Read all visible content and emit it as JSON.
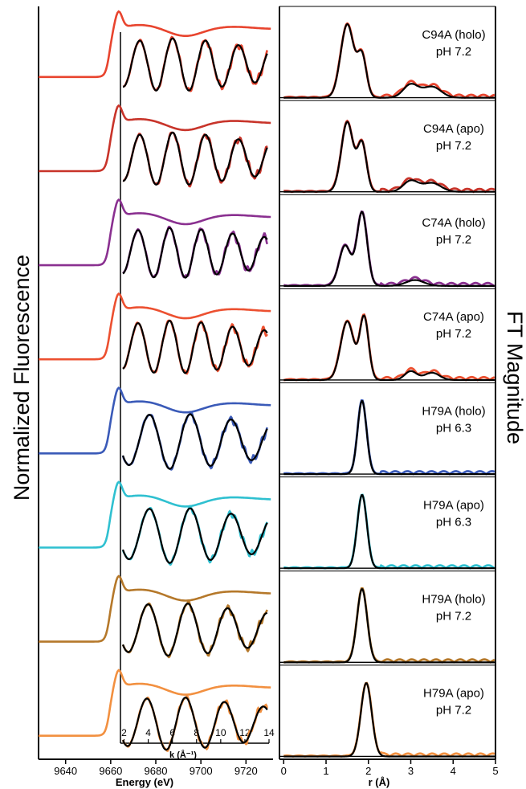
{
  "figure": {
    "left_ylabel": "Normalized Fluorescence",
    "right_ylabel": "FT Magnitude"
  },
  "chart_data": [
    {
      "type": "line",
      "panel": "XANES stack",
      "xlabel": "Energy (eV)",
      "xlim": [
        9628,
        9732
      ],
      "xticks": [
        9640,
        9660,
        9680,
        9700,
        9720
      ],
      "inset": {
        "xlabel": "k (Å⁻¹)",
        "xlim": [
          1.7,
          14
        ],
        "xticks": [
          2,
          4,
          6,
          8,
          10,
          12,
          14
        ]
      },
      "series": [
        {
          "label_line1": "C94A (holo)",
          "label_line2": "pH 7.2",
          "color": "#e8442e",
          "freq": 2.3,
          "amp": 1.0
        },
        {
          "label_line1": "C94A (apo)",
          "label_line2": "pH 7.2",
          "color": "#c8342a",
          "freq": 2.3,
          "amp": 1.0
        },
        {
          "label_line1": "C74A (holo)",
          "label_line2": "pH 7.2",
          "color": "#8a3090",
          "freq": 2.4,
          "amp": 0.95
        },
        {
          "label_line1": "C74A (apo)",
          "label_line2": "pH 7.2",
          "color": "#ec5030",
          "freq": 2.4,
          "amp": 1.0
        },
        {
          "label_line1": "H79A (holo)",
          "label_line2": "pH 6.3",
          "color": "#3a5ab8",
          "freq": 1.85,
          "amp": 1.05
        },
        {
          "label_line1": "H79A (apo)",
          "label_line2": "pH 6.3",
          "color": "#2fc0d0",
          "freq": 1.85,
          "amp": 1.05
        },
        {
          "label_line1": "H79A (holo)",
          "label_line2": "pH 7.2",
          "color": "#b5782a",
          "freq": 1.9,
          "amp": 1.0
        },
        {
          "label_line1": "H79A (apo)",
          "label_line2": "pH 7.2",
          "color": "#f29040",
          "freq": 1.95,
          "amp": 1.0
        }
      ]
    },
    {
      "type": "line",
      "panel": "FT stack",
      "xlabel": "r (Å)",
      "xlim": [
        -0.1,
        5
      ],
      "xticks": [
        0,
        1,
        2,
        3,
        4,
        5
      ],
      "series": [
        {
          "label_line1": "C94A (holo)",
          "label_line2": "pH 7.2",
          "color": "#e8442e",
          "peaks": [
            [
              1.5,
              1.0,
              0.22
            ],
            [
              1.85,
              0.55,
              0.15
            ],
            [
              3.0,
              0.18,
              0.25
            ],
            [
              3.5,
              0.15,
              0.3
            ]
          ]
        },
        {
          "label_line1": "C94A (apo)",
          "label_line2": "pH 7.2",
          "color": "#c8342a",
          "peaks": [
            [
              1.5,
              0.95,
              0.2
            ],
            [
              1.85,
              0.65,
              0.15
            ],
            [
              3.0,
              0.15,
              0.25
            ],
            [
              3.5,
              0.12,
              0.3
            ]
          ]
        },
        {
          "label_line1": "C74A (holo)",
          "label_line2": "pH 7.2",
          "color": "#8a3090",
          "peaks": [
            [
              1.45,
              0.55,
              0.2
            ],
            [
              1.85,
              1.0,
              0.17
            ],
            [
              3.1,
              0.08,
              0.3
            ]
          ]
        },
        {
          "label_line1": "C74A (apo)",
          "label_line2": "pH 7.2",
          "color": "#ec5030",
          "peaks": [
            [
              1.5,
              0.8,
              0.22
            ],
            [
              1.9,
              0.85,
              0.15
            ],
            [
              3.0,
              0.12,
              0.2
            ],
            [
              3.5,
              0.1,
              0.25
            ]
          ]
        },
        {
          "label_line1": "H79A (holo)",
          "label_line2": "pH 6.3",
          "color": "#3a5ab8",
          "peaks": [
            [
              1.85,
              1.0,
              0.15
            ]
          ]
        },
        {
          "label_line1": "H79A (apo)",
          "label_line2": "pH 6.3",
          "color": "#2fc0d0",
          "peaks": [
            [
              1.85,
              1.0,
              0.16
            ]
          ]
        },
        {
          "label_line1": "H79A (holo)",
          "label_line2": "pH 7.2",
          "color": "#b5782a",
          "peaks": [
            [
              1.85,
              1.0,
              0.17
            ]
          ]
        },
        {
          "label_line1": "H79A (apo)",
          "label_line2": "pH 7.2",
          "color": "#f29040",
          "peaks": [
            [
              1.95,
              1.0,
              0.18
            ]
          ]
        }
      ]
    }
  ]
}
